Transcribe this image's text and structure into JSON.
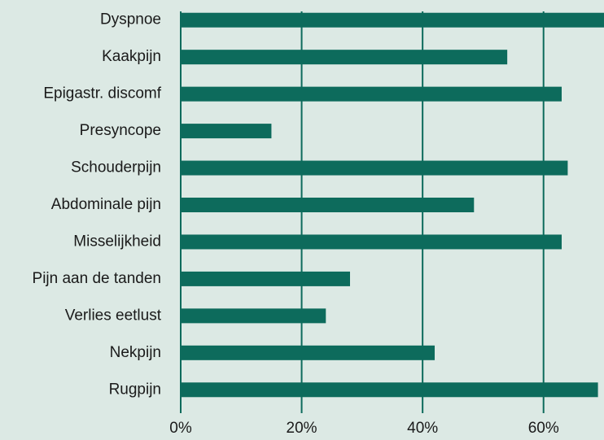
{
  "chart_data": {
    "type": "bar",
    "orientation": "horizontal",
    "categories": [
      "Dyspnoe",
      "Kaakpijn",
      "Epigastr. discomf",
      "Presyncope",
      "Schouderpijn",
      "Abdominale pijn",
      "Misselijkheid",
      "Pijn aan de tanden",
      "Verlies eetlust",
      "Nekpijn",
      "Rugpijn"
    ],
    "values": [
      70,
      54,
      63,
      15,
      64,
      48.5,
      63,
      28,
      24,
      42,
      69
    ],
    "color": "#0d6b5c",
    "xlim": [
      0,
      70
    ],
    "xticks": [
      {
        "value": 0,
        "label": "0%"
      },
      {
        "value": 20,
        "label": "20%"
      },
      {
        "value": 40,
        "label": "40%"
      },
      {
        "value": 60,
        "label": "60%"
      }
    ],
    "grid": true
  }
}
